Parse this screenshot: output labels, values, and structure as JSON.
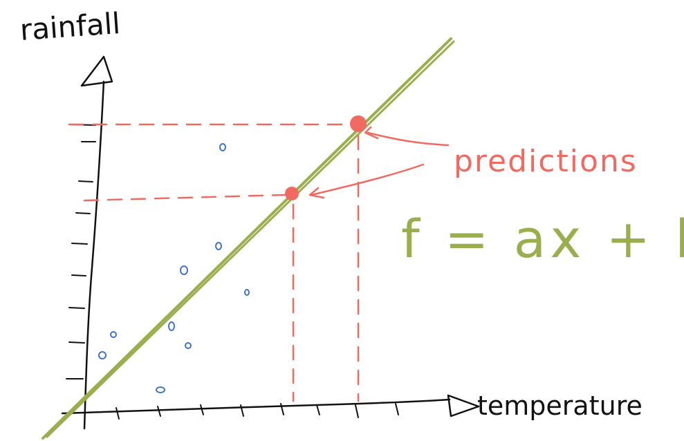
{
  "labels": {
    "y_axis": "rainfall",
    "x_axis": "temperature",
    "predictions": "predictions",
    "formula": "f = ax + b"
  },
  "colors": {
    "axis": "#111111",
    "line": "#9aae4e",
    "prediction": "#f06a62",
    "points": "#3f74c6"
  }
}
